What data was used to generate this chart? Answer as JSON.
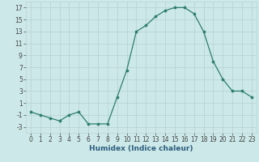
{
  "x": [
    0,
    1,
    2,
    3,
    4,
    5,
    6,
    7,
    8,
    9,
    10,
    11,
    12,
    13,
    14,
    15,
    16,
    17,
    18,
    19,
    20,
    21,
    22,
    23
  ],
  "y": [
    -0.5,
    -1,
    -1.5,
    -2,
    -1,
    -0.5,
    -2.5,
    -2.5,
    -2.5,
    2,
    6.5,
    13,
    14,
    15.5,
    16.5,
    17,
    17,
    16,
    13,
    8,
    5,
    3,
    3,
    2
  ],
  "line_color": "#2d7d6f",
  "marker_color": "#2d7d6f",
  "bg_color": "#cce8e8",
  "grid_color": "#b8d4d4",
  "xlabel": "Humidex (Indice chaleur)",
  "ylim": [
    -4,
    18
  ],
  "xlim": [
    -0.5,
    23.5
  ],
  "yticks": [
    -3,
    -1,
    1,
    3,
    5,
    7,
    9,
    11,
    13,
    15,
    17
  ],
  "xticks": [
    0,
    1,
    2,
    3,
    4,
    5,
    6,
    7,
    8,
    9,
    10,
    11,
    12,
    13,
    14,
    15,
    16,
    17,
    18,
    19,
    20,
    21,
    22,
    23
  ],
  "font_color": "#444444",
  "xlabel_color": "#2d5e7e",
  "tick_fontsize": 5.5,
  "label_fontsize": 6.5
}
